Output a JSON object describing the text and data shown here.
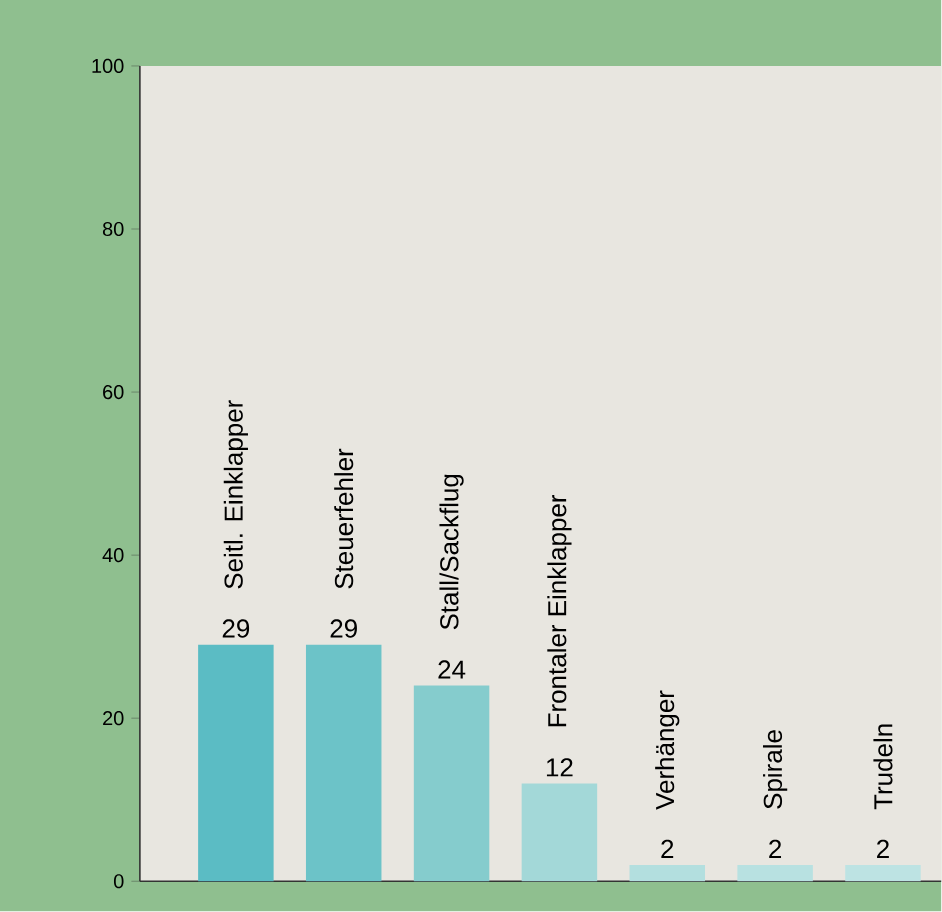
{
  "chart_data": {
    "type": "bar",
    "categories": [
      "Seitl. Einklapper",
      "Steuerfehler",
      "Stall/Sackflug",
      "Frontaler Einklapper",
      "Verhänger",
      "Spirale",
      "Trudeln"
    ],
    "values": [
      29,
      29,
      24,
      12,
      2,
      2,
      2
    ],
    "colors": [
      "#5bbcc4",
      "#6cc3c8",
      "#85cccd",
      "#a3d8d8",
      "#b3dfdf",
      "#b8e1e1",
      "#bde3e3"
    ],
    "ylim": [
      0,
      100
    ],
    "yticks": [
      0,
      20,
      40,
      60,
      80,
      100
    ],
    "data_labels": true
  }
}
